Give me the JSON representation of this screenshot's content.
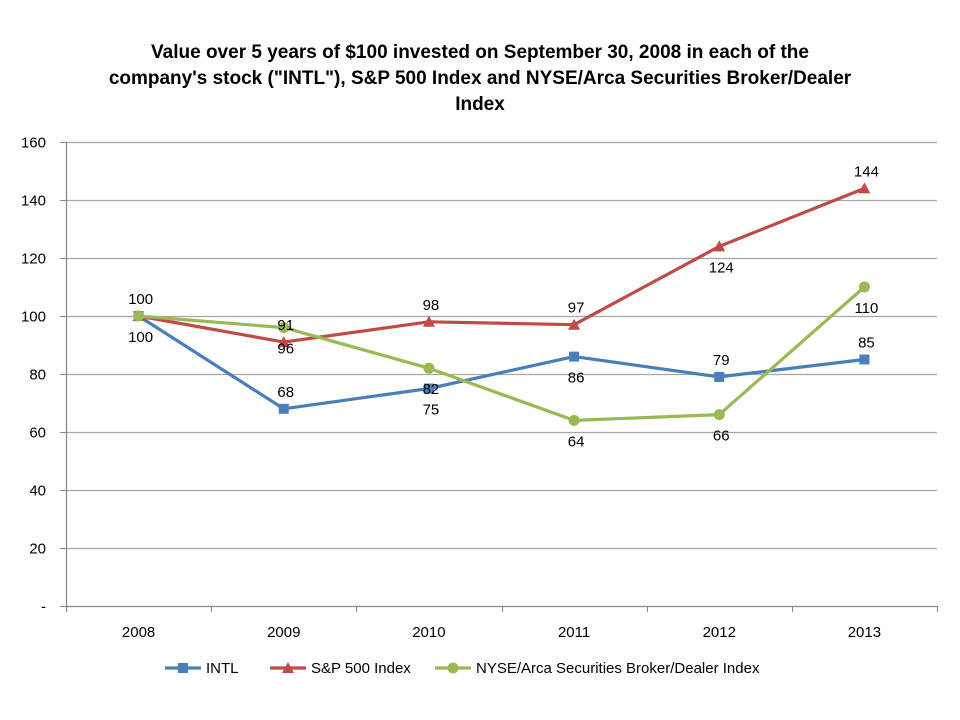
{
  "chart_data": {
    "type": "line",
    "title_lines": [
      "Value over 5 years of $100 invested on September 30, 2008 in each of the",
      "company's stock (\"INTL\"), S&P 500 Index and NYSE/Arca Securities Broker/Dealer",
      "Index"
    ],
    "xlabel": "",
    "ylabel": "",
    "categories": [
      "2008",
      "2009",
      "2010",
      "2011",
      "2012",
      "2013"
    ],
    "ylim": [
      0,
      160
    ],
    "yticks": [
      0,
      20,
      40,
      60,
      80,
      100,
      120,
      140,
      160
    ],
    "ytick_labels": [
      "-",
      "20",
      "40",
      "60",
      "80",
      "100",
      "120",
      "140",
      "160"
    ],
    "grid": "horizontal",
    "legend_position": "bottom",
    "series": [
      {
        "name": "INTL",
        "color": "#4A7EBB",
        "marker": "square",
        "values": [
          100,
          68,
          75,
          86,
          79,
          85
        ],
        "labels": [
          "",
          "68",
          "75",
          "86",
          "79",
          "85"
        ],
        "label_positions": [
          "none",
          "above",
          "below",
          "below",
          "above",
          "above"
        ]
      },
      {
        "name": "S&P 500 Index",
        "color": "#BE4B48",
        "marker": "triangle",
        "values": [
          100,
          91,
          98,
          97,
          124,
          144
        ],
        "labels": [
          "100",
          "91",
          "98",
          "97",
          "124",
          "144"
        ],
        "label_positions": [
          "above",
          "above",
          "above",
          "above",
          "below",
          "above"
        ]
      },
      {
        "name": "NYSE/Arca Securities Broker/Dealer Index",
        "color": "#98B954",
        "marker": "circle",
        "values": [
          100,
          96,
          82,
          64,
          66,
          110
        ],
        "labels": [
          "100",
          "96",
          "82",
          "64",
          "66",
          "110"
        ],
        "label_positions": [
          "below",
          "below",
          "below",
          "below",
          "below",
          "below"
        ]
      }
    ]
  }
}
